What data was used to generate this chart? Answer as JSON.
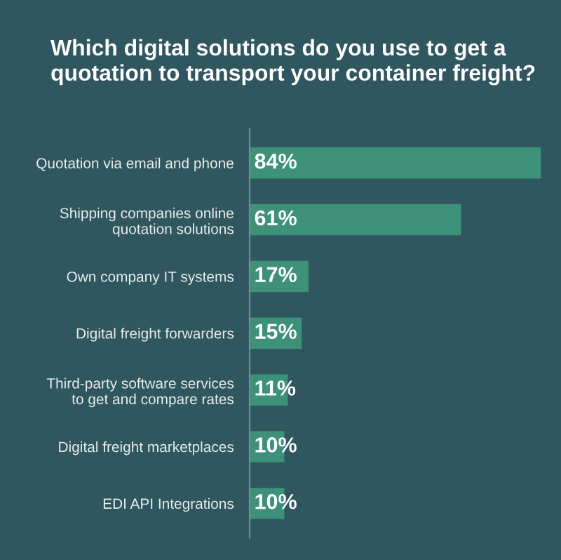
{
  "chart_data": {
    "type": "bar",
    "orientation": "horizontal",
    "title": "Which digital solutions do you use to get a\nquotation to transport your container freight?",
    "categories": [
      "Quotation via email and phone",
      "Shipping companies online\nquotation solutions",
      "Own company IT systems",
      "Digital freight forwarders",
      "Third-party software services\nto get and compare rates",
      "Digital freight marketplaces",
      "EDI API Integrations"
    ],
    "values": [
      84,
      61,
      17,
      15,
      11,
      10,
      10
    ],
    "value_labels": [
      "84%",
      "61%",
      "17%",
      "15%",
      "11%",
      "10%",
      "10%"
    ],
    "color": "#3d9179",
    "tick_labels": "y",
    "grid": false
  }
}
